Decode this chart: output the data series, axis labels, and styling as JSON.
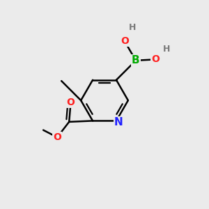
{
  "bg_color": "#ebebeb",
  "bond_color": "#000000",
  "atom_colors": {
    "N": "#2020ff",
    "O": "#ff2020",
    "B": "#00aa00",
    "C": "#000000",
    "H": "#7a7a7a"
  },
  "lw": 1.8,
  "font_size_atom": 11,
  "font_size_H": 9
}
